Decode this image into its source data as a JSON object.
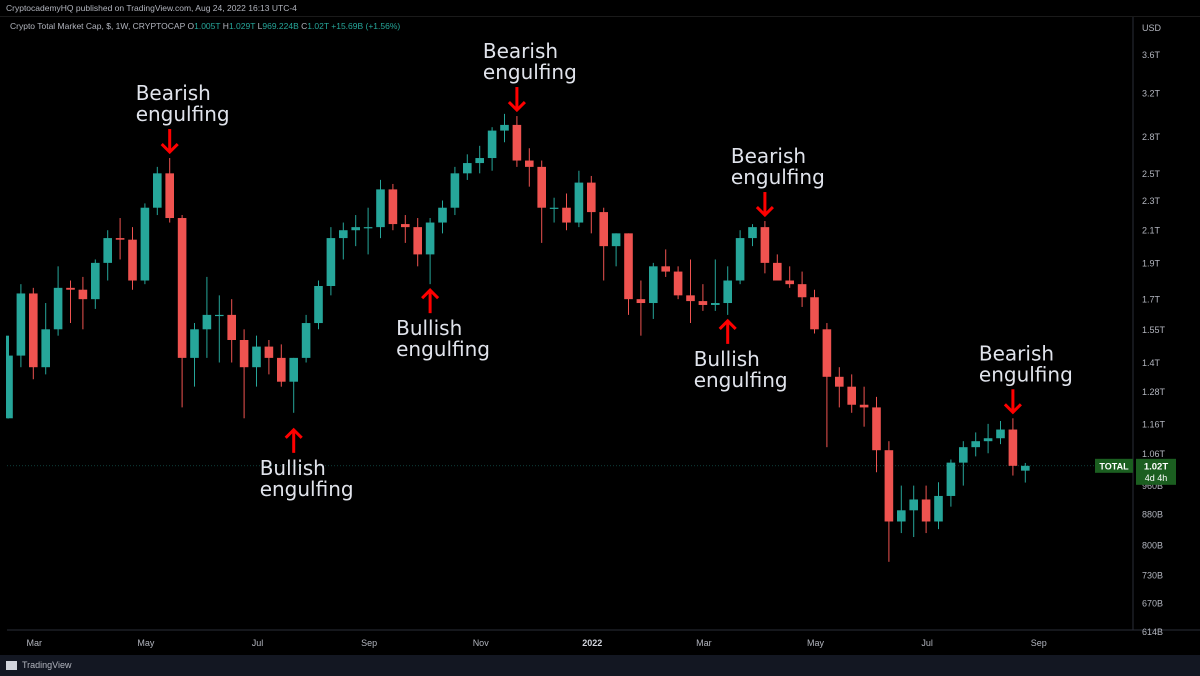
{
  "header": {
    "publisher": "CryptocademyHQ published on TradingView.com, Aug 24, 2022 16:13 UTC-4",
    "symbol": "Crypto Total Market Cap, $, 1W, CRYPTOCAP",
    "ohlc": {
      "o_label": "O",
      "o": "1.005T",
      "h_label": "H",
      "h": "1.029T",
      "l_label": "L",
      "l": "969.224B",
      "c_label": "C",
      "c": "1.02T",
      "change": "+15.69B (+1.56%)"
    }
  },
  "footer": {
    "brand": "TradingView"
  },
  "colors": {
    "up": "#26a69a",
    "down": "#ef5350",
    "arrow": "#ff0000",
    "badge": "#1b5e20"
  },
  "chart_data": {
    "type": "candlestick",
    "title": "Crypto Total Market Cap, $, 1W, CRYPTOCAP",
    "y_axis_label": "USD",
    "y_scale": "log",
    "ylim": [
      0.58,
      4.0
    ],
    "y_ticks": [
      {
        "v": 3.6,
        "label": "3.6T"
      },
      {
        "v": 3.2,
        "label": "3.2T"
      },
      {
        "v": 2.8,
        "label": "2.8T"
      },
      {
        "v": 2.5,
        "label": "2.5T"
      },
      {
        "v": 2.3,
        "label": "2.3T"
      },
      {
        "v": 2.1,
        "label": "2.1T"
      },
      {
        "v": 1.9,
        "label": "1.9T"
      },
      {
        "v": 1.7,
        "label": "1.7T"
      },
      {
        "v": 1.55,
        "label": "1.55T"
      },
      {
        "v": 1.4,
        "label": "1.4T"
      },
      {
        "v": 1.28,
        "label": "1.28T"
      },
      {
        "v": 1.16,
        "label": "1.16T"
      },
      {
        "v": 1.06,
        "label": "1.06T"
      },
      {
        "v": 0.96,
        "label": "960B"
      },
      {
        "v": 0.88,
        "label": "880B"
      },
      {
        "v": 0.8,
        "label": "800B"
      },
      {
        "v": 0.73,
        "label": "730B"
      },
      {
        "v": 0.67,
        "label": "670B"
      },
      {
        "v": 0.614,
        "label": "614B"
      }
    ],
    "x_ticks": [
      {
        "week": 2,
        "label": "Mar",
        "bold": false
      },
      {
        "week": 11,
        "label": "May",
        "bold": false
      },
      {
        "week": 20,
        "label": "Jul",
        "bold": false
      },
      {
        "week": 29,
        "label": "Sep",
        "bold": false
      },
      {
        "week": 38,
        "label": "Nov",
        "bold": false
      },
      {
        "week": 47,
        "label": "2022",
        "bold": true
      },
      {
        "week": 56,
        "label": "Mar",
        "bold": false
      },
      {
        "week": 65,
        "label": "May",
        "bold": false
      },
      {
        "week": 74,
        "label": "Jul",
        "bold": false
      },
      {
        "week": 83,
        "label": "Sep",
        "bold": false
      }
    ],
    "candles": [
      {
        "o": 1.18,
        "h": 1.45,
        "l": 1.18,
        "c": 1.43
      },
      {
        "o": 1.43,
        "h": 1.78,
        "l": 1.38,
        "c": 1.73
      },
      {
        "o": 1.73,
        "h": 1.76,
        "l": 1.33,
        "c": 1.38
      },
      {
        "o": 1.38,
        "h": 1.68,
        "l": 1.35,
        "c": 1.55
      },
      {
        "o": 1.55,
        "h": 1.88,
        "l": 1.52,
        "c": 1.76
      },
      {
        "o": 1.76,
        "h": 1.8,
        "l": 1.58,
        "c": 1.75
      },
      {
        "o": 1.75,
        "h": 1.82,
        "l": 1.55,
        "c": 1.7
      },
      {
        "o": 1.7,
        "h": 1.92,
        "l": 1.65,
        "c": 1.9
      },
      {
        "o": 1.9,
        "h": 2.1,
        "l": 1.8,
        "c": 2.05
      },
      {
        "o": 2.05,
        "h": 2.18,
        "l": 1.92,
        "c": 2.04
      },
      {
        "o": 2.04,
        "h": 2.12,
        "l": 1.75,
        "c": 1.8
      },
      {
        "o": 1.8,
        "h": 2.28,
        "l": 1.78,
        "c": 2.25
      },
      {
        "o": 2.25,
        "h": 2.55,
        "l": 2.2,
        "c": 2.5
      },
      {
        "o": 2.5,
        "h": 2.62,
        "l": 2.15,
        "c": 2.18
      },
      {
        "o": 2.18,
        "h": 2.2,
        "l": 1.22,
        "c": 1.42
      },
      {
        "o": 1.42,
        "h": 1.58,
        "l": 1.3,
        "c": 1.55
      },
      {
        "o": 1.55,
        "h": 1.82,
        "l": 1.42,
        "c": 1.62
      },
      {
        "o": 1.62,
        "h": 1.72,
        "l": 1.4,
        "c": 1.62
      },
      {
        "o": 1.62,
        "h": 1.7,
        "l": 1.4,
        "c": 1.5
      },
      {
        "o": 1.5,
        "h": 1.55,
        "l": 1.18,
        "c": 1.38
      },
      {
        "o": 1.38,
        "h": 1.52,
        "l": 1.3,
        "c": 1.47
      },
      {
        "o": 1.47,
        "h": 1.5,
        "l": 1.35,
        "c": 1.42
      },
      {
        "o": 1.42,
        "h": 1.48,
        "l": 1.3,
        "c": 1.32
      },
      {
        "o": 1.32,
        "h": 1.42,
        "l": 1.2,
        "c": 1.42
      },
      {
        "o": 1.42,
        "h": 1.62,
        "l": 1.4,
        "c": 1.58
      },
      {
        "o": 1.58,
        "h": 1.8,
        "l": 1.55,
        "c": 1.77
      },
      {
        "o": 1.77,
        "h": 2.12,
        "l": 1.72,
        "c": 2.05
      },
      {
        "o": 2.05,
        "h": 2.15,
        "l": 1.92,
        "c": 2.1
      },
      {
        "o": 2.1,
        "h": 2.2,
        "l": 2.0,
        "c": 2.12
      },
      {
        "o": 2.12,
        "h": 2.25,
        "l": 1.95,
        "c": 2.12
      },
      {
        "o": 2.12,
        "h": 2.45,
        "l": 2.05,
        "c": 2.38
      },
      {
        "o": 2.38,
        "h": 2.42,
        "l": 2.1,
        "c": 2.14
      },
      {
        "o": 2.14,
        "h": 2.2,
        "l": 2.02,
        "c": 2.12
      },
      {
        "o": 2.12,
        "h": 2.18,
        "l": 1.88,
        "c": 1.95
      },
      {
        "o": 1.95,
        "h": 2.18,
        "l": 1.78,
        "c": 2.15
      },
      {
        "o": 2.15,
        "h": 2.3,
        "l": 2.08,
        "c": 2.25
      },
      {
        "o": 2.25,
        "h": 2.55,
        "l": 2.2,
        "c": 2.5
      },
      {
        "o": 2.5,
        "h": 2.65,
        "l": 2.45,
        "c": 2.58
      },
      {
        "o": 2.58,
        "h": 2.72,
        "l": 2.5,
        "c": 2.62
      },
      {
        "o": 2.62,
        "h": 2.88,
        "l": 2.52,
        "c": 2.85
      },
      {
        "o": 2.85,
        "h": 3.0,
        "l": 2.75,
        "c": 2.9
      },
      {
        "o": 2.9,
        "h": 2.98,
        "l": 2.55,
        "c": 2.6
      },
      {
        "o": 2.6,
        "h": 2.7,
        "l": 2.4,
        "c": 2.55
      },
      {
        "o": 2.55,
        "h": 2.6,
        "l": 2.02,
        "c": 2.25
      },
      {
        "o": 2.25,
        "h": 2.32,
        "l": 2.15,
        "c": 2.25
      },
      {
        "o": 2.25,
        "h": 2.35,
        "l": 2.1,
        "c": 2.15
      },
      {
        "o": 2.15,
        "h": 2.52,
        "l": 2.12,
        "c": 2.43
      },
      {
        "o": 2.43,
        "h": 2.48,
        "l": 2.08,
        "c": 2.22
      },
      {
        "o": 2.22,
        "h": 2.25,
        "l": 1.8,
        "c": 2.0
      },
      {
        "o": 2.0,
        "h": 2.08,
        "l": 1.88,
        "c": 2.08
      },
      {
        "o": 2.08,
        "h": 2.08,
        "l": 1.62,
        "c": 1.7
      },
      {
        "o": 1.7,
        "h": 1.8,
        "l": 1.52,
        "c": 1.68
      },
      {
        "o": 1.68,
        "h": 1.9,
        "l": 1.6,
        "c": 1.88
      },
      {
        "o": 1.88,
        "h": 1.98,
        "l": 1.82,
        "c": 1.85
      },
      {
        "o": 1.85,
        "h": 1.88,
        "l": 1.7,
        "c": 1.72
      },
      {
        "o": 1.72,
        "h": 1.92,
        "l": 1.58,
        "c": 1.69
      },
      {
        "o": 1.69,
        "h": 1.78,
        "l": 1.64,
        "c": 1.67
      },
      {
        "o": 1.67,
        "h": 1.92,
        "l": 1.64,
        "c": 1.68
      },
      {
        "o": 1.68,
        "h": 1.88,
        "l": 1.62,
        "c": 1.8
      },
      {
        "o": 1.8,
        "h": 2.1,
        "l": 1.78,
        "c": 2.05
      },
      {
        "o": 2.05,
        "h": 2.14,
        "l": 2.0,
        "c": 2.12
      },
      {
        "o": 2.12,
        "h": 2.16,
        "l": 1.84,
        "c": 1.9
      },
      {
        "o": 1.9,
        "h": 1.95,
        "l": 1.8,
        "c": 1.8
      },
      {
        "o": 1.8,
        "h": 1.88,
        "l": 1.76,
        "c": 1.78
      },
      {
        "o": 1.78,
        "h": 1.85,
        "l": 1.66,
        "c": 1.71
      },
      {
        "o": 1.71,
        "h": 1.75,
        "l": 1.53,
        "c": 1.55
      },
      {
        "o": 1.55,
        "h": 1.58,
        "l": 1.08,
        "c": 1.34
      },
      {
        "o": 1.34,
        "h": 1.38,
        "l": 1.22,
        "c": 1.3
      },
      {
        "o": 1.3,
        "h": 1.35,
        "l": 1.2,
        "c": 1.23
      },
      {
        "o": 1.23,
        "h": 1.3,
        "l": 1.15,
        "c": 1.22
      },
      {
        "o": 1.22,
        "h": 1.26,
        "l": 1.0,
        "c": 1.07
      },
      {
        "o": 1.07,
        "h": 1.1,
        "l": 0.76,
        "c": 0.86
      },
      {
        "o": 0.86,
        "h": 0.96,
        "l": 0.83,
        "c": 0.89
      },
      {
        "o": 0.89,
        "h": 0.96,
        "l": 0.82,
        "c": 0.92
      },
      {
        "o": 0.92,
        "h": 0.96,
        "l": 0.83,
        "c": 0.86
      },
      {
        "o": 0.86,
        "h": 0.97,
        "l": 0.84,
        "c": 0.93
      },
      {
        "o": 0.93,
        "h": 1.04,
        "l": 0.9,
        "c": 1.03
      },
      {
        "o": 1.03,
        "h": 1.1,
        "l": 0.96,
        "c": 1.08
      },
      {
        "o": 1.08,
        "h": 1.13,
        "l": 1.05,
        "c": 1.1
      },
      {
        "o": 1.1,
        "h": 1.16,
        "l": 1.06,
        "c": 1.11
      },
      {
        "o": 1.11,
        "h": 1.17,
        "l": 1.09,
        "c": 1.14
      },
      {
        "o": 1.14,
        "h": 1.18,
        "l": 0.99,
        "c": 1.02
      },
      {
        "o": 1.005,
        "h": 1.029,
        "l": 0.969,
        "c": 1.02
      }
    ],
    "annotations": [
      {
        "text": [
          "Bearish",
          "engulfing"
        ],
        "week": 13,
        "dir": "down",
        "y_value": 2.62
      },
      {
        "text": [
          "Bearish",
          "engulfing"
        ],
        "week": 41,
        "dir": "down",
        "y_value": 2.98
      },
      {
        "text": [
          "Bearish",
          "engulfing"
        ],
        "week": 61,
        "dir": "down",
        "y_value": 2.16
      },
      {
        "text": [
          "Bearish",
          "engulfing"
        ],
        "week": 81,
        "dir": "down",
        "y_value": 1.18
      },
      {
        "text": [
          "Bullish",
          "engulfing"
        ],
        "week": 23,
        "dir": "up",
        "y_value": 1.16
      },
      {
        "text": [
          "Bullish",
          "engulfing"
        ],
        "week": 34,
        "dir": "up",
        "y_value": 1.78
      },
      {
        "text": [
          "Bullish",
          "engulfing"
        ],
        "week": 58,
        "dir": "up",
        "y_value": 1.62
      }
    ],
    "last_price": {
      "symbol": "TOTAL",
      "value": "1.02T",
      "countdown": "4d 4h",
      "v": 1.02
    }
  }
}
